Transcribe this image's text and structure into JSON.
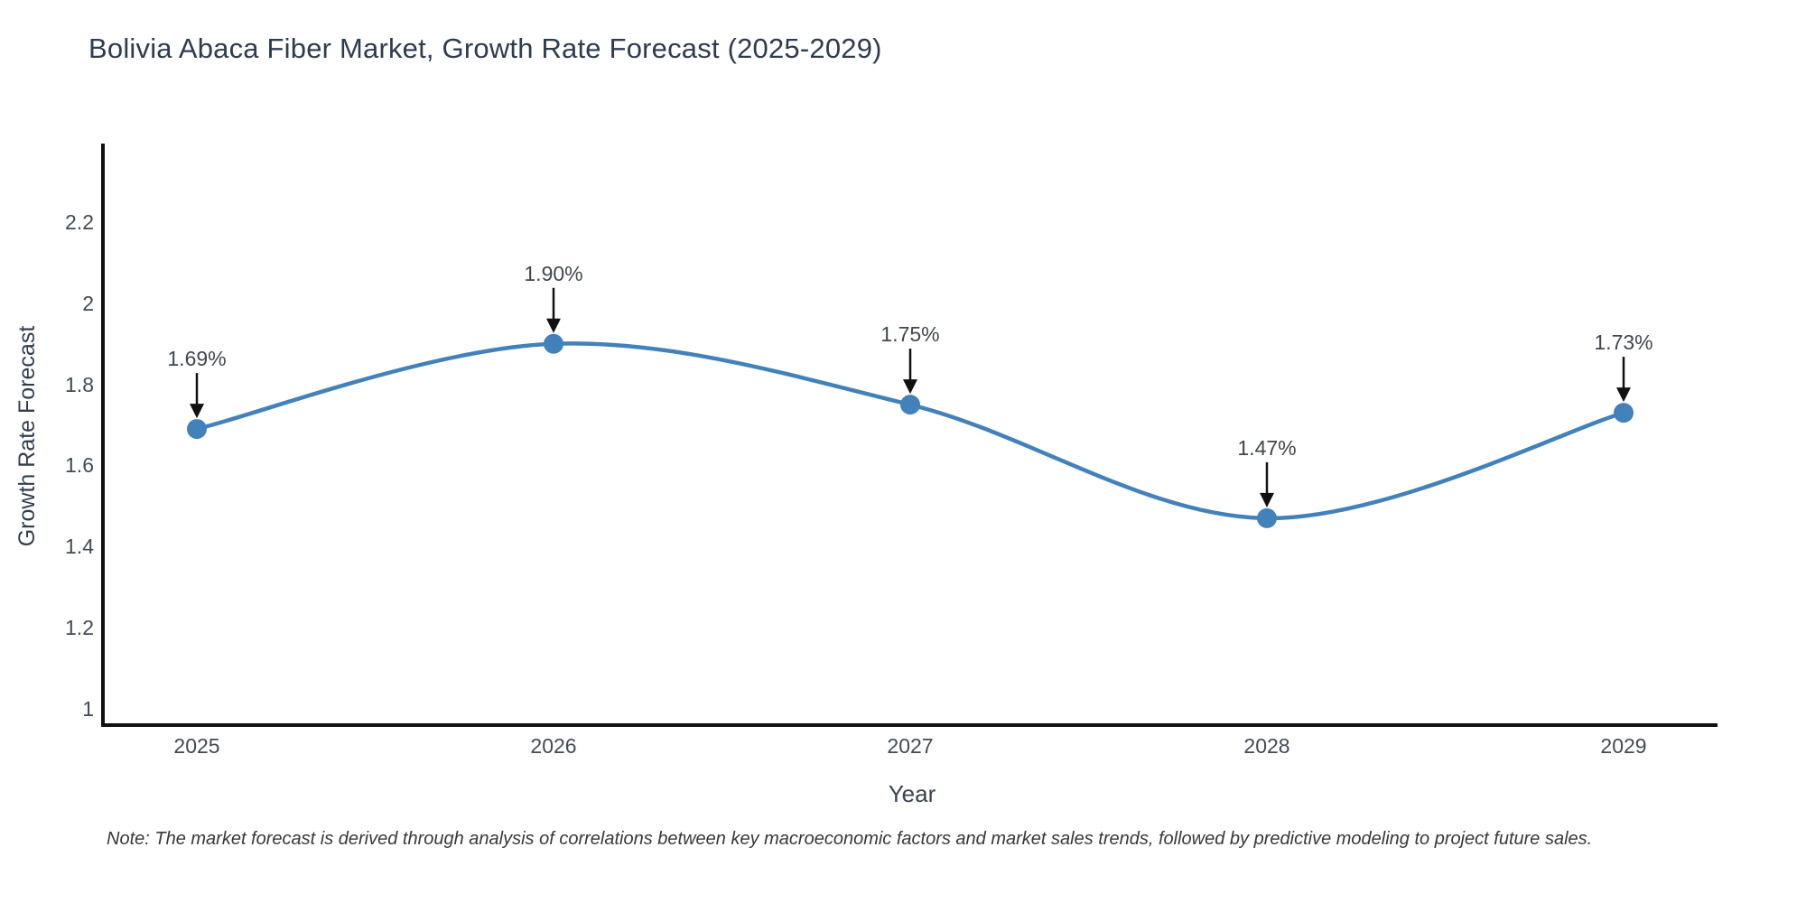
{
  "chart_data": {
    "type": "line",
    "title": "Bolivia Abaca Fiber Market, Growth Rate Forecast (2025-2029)",
    "xlabel": "Year",
    "ylabel": "Growth Rate Forecast",
    "categories": [
      "2025",
      "2026",
      "2027",
      "2028",
      "2029"
    ],
    "series": [
      {
        "name": "Growth Rate Forecast",
        "values": [
          1.69,
          1.9,
          1.75,
          1.47,
          1.73
        ],
        "point_labels": [
          "1.69%",
          "1.90%",
          "1.75%",
          "1.47%",
          "1.73%"
        ]
      }
    ],
    "yticks": [
      {
        "value": 2.2,
        "label": "2.2"
      },
      {
        "value": 2.0,
        "label": "2"
      },
      {
        "value": 1.8,
        "label": "1.8"
      },
      {
        "value": 1.6,
        "label": "1.6"
      },
      {
        "value": 1.4,
        "label": "1.4"
      },
      {
        "value": 1.2,
        "label": "1.2"
      },
      {
        "value": 1.0,
        "label": "1"
      }
    ],
    "ylim": [
      0.96,
      2.39
    ],
    "grid": false,
    "legend_position": "none",
    "line_shape": "spline",
    "annotations": "value labels with downward arrows above each point",
    "colors": {
      "line": "#4281ba",
      "marker": "#4281ba",
      "axis": "#111111",
      "annotation_arrow": "#111111",
      "title_text": "#2e3c50",
      "tick_text": "#424a57"
    },
    "note": "Note: The market forecast is derived through analysis of correlations between key macroeconomic factors and market sales trends, followed by predictive modeling to project future sales."
  }
}
